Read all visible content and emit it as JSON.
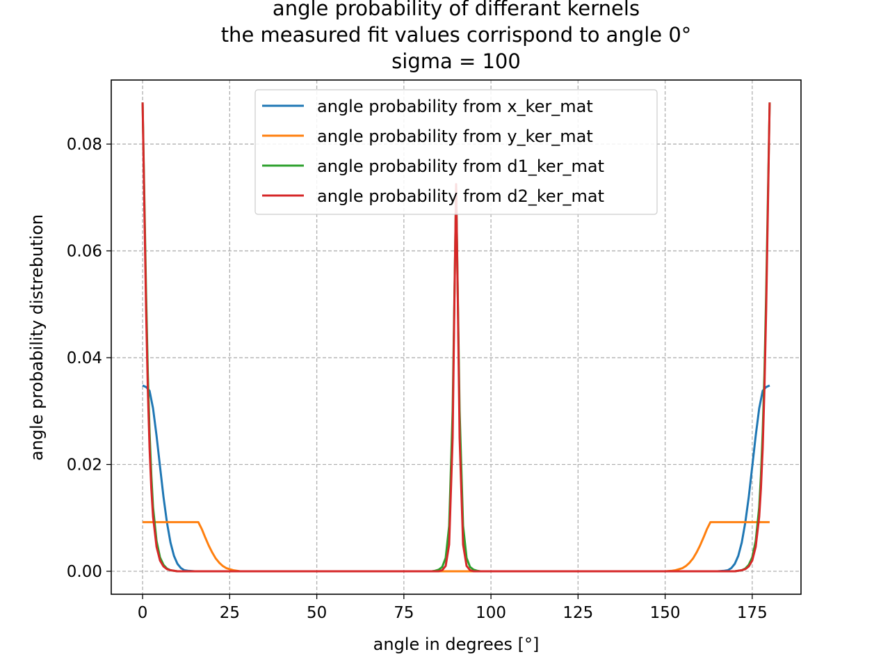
{
  "chart_data": {
    "type": "line",
    "title_lines": [
      "angle probability of differant kernels",
      "the measured fit values corrispond to angle 0°",
      "sigma = 100"
    ],
    "xlabel": "angle in degrees [°]",
    "ylabel": "angle probability distrebution",
    "xlim": [
      -9,
      189
    ],
    "ylim": [
      -0.0043,
      0.092
    ],
    "xticks": [
      0,
      25,
      50,
      75,
      100,
      125,
      150,
      175
    ],
    "xtick_labels": [
      "0",
      "25",
      "50",
      "75",
      "100",
      "125",
      "150",
      "175"
    ],
    "yticks": [
      0.0,
      0.02,
      0.04,
      0.06,
      0.08
    ],
    "ytick_labels": [
      "0.00",
      "0.02",
      "0.04",
      "0.06",
      "0.08"
    ],
    "grid": true,
    "legend_position": "upper-center",
    "series": [
      {
        "name": "angle probability from x_ker_mat",
        "color": "#1f77b4",
        "x": [
          0,
          1,
          2,
          3,
          4,
          5,
          6,
          7,
          8,
          9,
          10,
          11,
          12,
          13,
          15,
          20,
          90,
          160,
          165,
          167,
          168,
          169,
          170,
          171,
          172,
          173,
          174,
          175,
          176,
          177,
          178,
          179,
          180
        ],
        "y": [
          0.0348,
          0.0345,
          0.0338,
          0.0305,
          0.0254,
          0.0196,
          0.0139,
          0.0091,
          0.0054,
          0.0029,
          0.0014,
          0.0006,
          0.0002,
          0.0001,
          0.0,
          0.0,
          0.0,
          0.0,
          0.0,
          0.0001,
          0.0002,
          0.0006,
          0.0014,
          0.0029,
          0.0054,
          0.0091,
          0.0139,
          0.0196,
          0.0254,
          0.0305,
          0.0338,
          0.0345,
          0.0348
        ]
      },
      {
        "name": "angle probability from y_ker_mat",
        "color": "#ff7f0e",
        "x": [
          0,
          16,
          17,
          18,
          19,
          20,
          21,
          22,
          23,
          24,
          25,
          26,
          27,
          28,
          30,
          32,
          35,
          145,
          148,
          150,
          152,
          153,
          154,
          155,
          156,
          157,
          158,
          159,
          160,
          161,
          162,
          163,
          164,
          180
        ],
        "y": [
          0.0092,
          0.0092,
          0.0079,
          0.0063,
          0.0048,
          0.0035,
          0.0024,
          0.0016,
          0.001,
          0.0006,
          0.0004,
          0.0002,
          0.0001,
          0.0,
          0.0,
          0.0,
          0.0,
          0.0,
          0.0,
          0.0,
          0.0001,
          0.0002,
          0.0004,
          0.0006,
          0.001,
          0.0016,
          0.0024,
          0.0035,
          0.0048,
          0.0063,
          0.0079,
          0.0092,
          0.0092,
          0.0092
        ]
      },
      {
        "name": "angle probability from d1_ker_mat",
        "color": "#2ca02c",
        "x": [
          0,
          0.5,
          1,
          1.5,
          2,
          2.5,
          3,
          4,
          5,
          6,
          7,
          8,
          9,
          10,
          15,
          80,
          83,
          84,
          85,
          86,
          87,
          88,
          89,
          90,
          91,
          92,
          93,
          94,
          95,
          96,
          97,
          100,
          165,
          170,
          171,
          172,
          173,
          174,
          175,
          176,
          177,
          177.5,
          178,
          178.5,
          179,
          179.5,
          180
        ],
        "y": [
          0.0878,
          0.07,
          0.052,
          0.037,
          0.026,
          0.018,
          0.012,
          0.0057,
          0.0026,
          0.0012,
          0.0005,
          0.0002,
          0.0001,
          0.0,
          0.0,
          0.0,
          0.0,
          0.0001,
          0.0003,
          0.0008,
          0.0025,
          0.0085,
          0.03,
          0.0722,
          0.03,
          0.0085,
          0.0025,
          0.0008,
          0.0003,
          0.0001,
          0.0,
          0.0,
          0.0,
          0.0,
          0.0001,
          0.0002,
          0.0005,
          0.0012,
          0.0026,
          0.0057,
          0.012,
          0.018,
          0.026,
          0.037,
          0.052,
          0.07,
          0.0878
        ]
      },
      {
        "name": "angle probability from d2_ker_mat",
        "color": "#d62728",
        "x": [
          0,
          0.5,
          1,
          1.5,
          2,
          2.5,
          3,
          4,
          5,
          6,
          7,
          8,
          9,
          10,
          15,
          80,
          85,
          86,
          87,
          88,
          89,
          89.5,
          90,
          90.5,
          91,
          92,
          93,
          94,
          95,
          100,
          165,
          170,
          171,
          172,
          173,
          174,
          175,
          176,
          177,
          177.5,
          178,
          178.5,
          179,
          179.5,
          180
        ],
        "y": [
          0.0878,
          0.068,
          0.049,
          0.034,
          0.023,
          0.0155,
          0.0102,
          0.0046,
          0.002,
          0.0009,
          0.0004,
          0.0002,
          0.0001,
          0.0,
          0.0,
          0.0,
          0.0,
          0.0002,
          0.001,
          0.005,
          0.025,
          0.05,
          0.0725,
          0.05,
          0.025,
          0.005,
          0.001,
          0.0002,
          0.0,
          0.0,
          0.0,
          0.0,
          0.0001,
          0.0002,
          0.0004,
          0.0009,
          0.002,
          0.0046,
          0.0102,
          0.0155,
          0.023,
          0.034,
          0.049,
          0.068,
          0.0878
        ]
      }
    ]
  }
}
